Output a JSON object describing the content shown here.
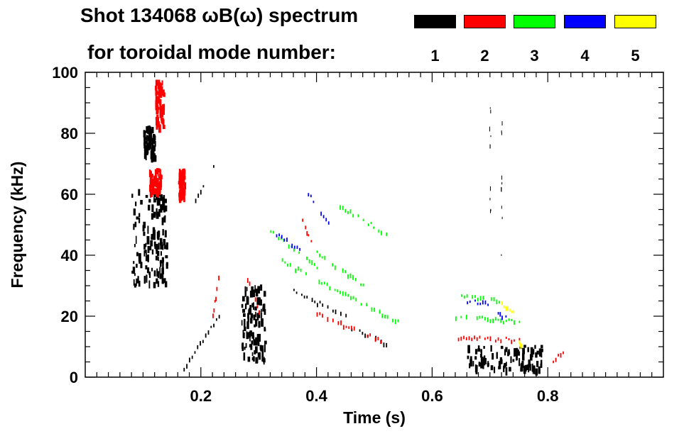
{
  "chart_data": {
    "type": "scatter",
    "title_line1": "Shot 134068 ωB(ω) spectrum",
    "title_line2": "for toroidal mode number:",
    "xlabel": "Time (s)",
    "ylabel": "Frequency (kHz)",
    "xlim": [
      0.0,
      1.0
    ],
    "ylim": [
      0,
      100
    ],
    "xticks": [
      0.2,
      0.4,
      0.6,
      0.8
    ],
    "xtick_labels": [
      "0.2",
      "0.4",
      "0.6",
      "0.8"
    ],
    "yticks": [
      0,
      20,
      40,
      60,
      80,
      100
    ],
    "ytick_labels": [
      "0",
      "20",
      "40",
      "60",
      "80",
      "100"
    ],
    "legend": [
      {
        "label": "1",
        "color": "#000000"
      },
      {
        "label": "2",
        "color": "#ff0000"
      },
      {
        "label": "3",
        "color": "#00ff00"
      },
      {
        "label": "4",
        "color": "#0000ff"
      },
      {
        "label": "5",
        "color": "#ffff00"
      }
    ],
    "series": [
      {
        "name": "1",
        "color": "#000000",
        "features": [
          {
            "kind": "blob",
            "t": [
              0.08,
              0.14
            ],
            "f": [
              30,
              62
            ]
          },
          {
            "kind": "blob",
            "t": [
              0.1,
              0.12
            ],
            "f": [
              72,
              82
            ]
          },
          {
            "kind": "sweep",
            "t": [
              0.17,
              0.24
            ],
            "f": [
              3,
              23
            ]
          },
          {
            "kind": "sweep",
            "t": [
              0.19,
              0.23
            ],
            "f": [
              58,
              72
            ]
          },
          {
            "kind": "blob",
            "t": [
              0.27,
              0.31
            ],
            "f": [
              5,
              30
            ]
          },
          {
            "kind": "sweep",
            "t": [
              0.36,
              0.45
            ],
            "f": [
              28,
              20
            ]
          },
          {
            "kind": "sweep",
            "t": [
              0.46,
              0.52
            ],
            "f": [
              16,
              11
            ]
          },
          {
            "kind": "blob",
            "t": [
              0.66,
              0.79
            ],
            "f": [
              2,
              10
            ]
          },
          {
            "kind": "vline",
            "t": [
              0.7,
              0.7
            ],
            "f": [
              55,
              90
            ]
          },
          {
            "kind": "vline",
            "t": [
              0.72,
              0.72
            ],
            "f": [
              40,
              92
            ]
          }
        ]
      },
      {
        "name": "2",
        "color": "#ff0000",
        "features": [
          {
            "kind": "blob",
            "t": [
              0.11,
              0.13
            ],
            "f": [
              60,
              68
            ]
          },
          {
            "kind": "blob",
            "t": [
              0.16,
              0.17
            ],
            "f": [
              59,
              68
            ]
          },
          {
            "kind": "blob",
            "t": [
              0.12,
              0.135
            ],
            "f": [
              82,
              97
            ]
          },
          {
            "kind": "sweep",
            "t": [
              0.22,
              0.23
            ],
            "f": [
              20,
              33
            ]
          },
          {
            "kind": "sweep",
            "t": [
              0.28,
              0.3
            ],
            "f": [
              32,
              22
            ]
          },
          {
            "kind": "sweep",
            "t": [
              0.375,
              0.39
            ],
            "f": [
              51,
              45
            ]
          },
          {
            "kind": "sweep",
            "t": [
              0.4,
              0.51
            ],
            "f": [
              21,
              12
            ]
          },
          {
            "kind": "sweep",
            "t": [
              0.64,
              0.75
            ],
            "f": [
              13,
              12
            ]
          },
          {
            "kind": "sweep",
            "t": [
              0.8,
              0.83
            ],
            "f": [
              4,
              9
            ]
          }
        ]
      },
      {
        "name": "3",
        "color": "#00ff00",
        "features": [
          {
            "kind": "sweep",
            "t": [
              0.32,
              0.4
            ],
            "f": [
              48,
              36
            ]
          },
          {
            "kind": "sweep",
            "t": [
              0.4,
              0.48
            ],
            "f": [
              41,
              30
            ]
          },
          {
            "kind": "sweep",
            "t": [
              0.34,
              0.54
            ],
            "f": [
              38,
              18
            ]
          },
          {
            "kind": "sweep",
            "t": [
              0.44,
              0.52
            ],
            "f": [
              56,
              47
            ]
          },
          {
            "kind": "sweep",
            "t": [
              0.64,
              0.75
            ],
            "f": [
              20,
              18
            ]
          },
          {
            "kind": "sweep",
            "t": [
              0.65,
              0.72
            ],
            "f": [
              27,
              25
            ]
          }
        ]
      },
      {
        "name": "4",
        "color": "#0000ff",
        "features": [
          {
            "kind": "sweep",
            "t": [
              0.33,
              0.37
            ],
            "f": [
              47,
              42
            ]
          },
          {
            "kind": "sweep",
            "t": [
              0.385,
              0.42
            ],
            "f": [
              60,
              51
            ]
          },
          {
            "kind": "sweep",
            "t": [
              0.66,
              0.7
            ],
            "f": [
              25,
              24
            ]
          },
          {
            "kind": "sweep",
            "t": [
              0.71,
              0.73
            ],
            "f": [
              21,
              19
            ]
          }
        ]
      },
      {
        "name": "5",
        "color": "#ffff00",
        "features": [
          {
            "kind": "sweep",
            "t": [
              0.72,
              0.74
            ],
            "f": [
              24,
              21
            ]
          },
          {
            "kind": "sweep",
            "t": [
              0.75,
              0.755
            ],
            "f": [
              11,
              10
            ]
          }
        ]
      }
    ]
  }
}
